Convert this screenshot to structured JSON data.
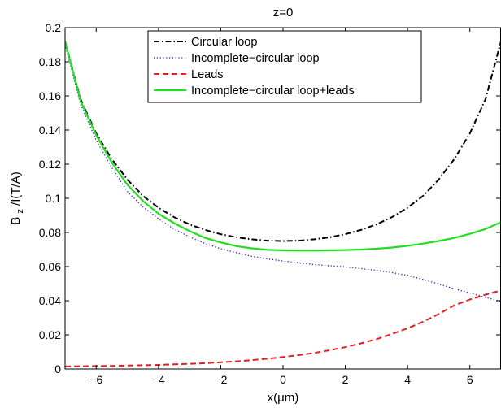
{
  "chart_data": {
    "type": "line",
    "title": "z=0",
    "xlabel": "x(μm)",
    "ylabel": "B_z/I(T/A)",
    "ylabel_main": "B",
    "ylabel_sub": "z",
    "ylabel_rest": "/I(T/A)",
    "xlim": [
      -7,
      7
    ],
    "ylim": [
      0,
      0.2
    ],
    "x_ticks": [
      -6,
      -4,
      -2,
      0,
      2,
      4,
      6
    ],
    "x_tick_labels": [
      "−6",
      "−4",
      "−2",
      "0",
      "2",
      "4",
      "6"
    ],
    "y_ticks": [
      0,
      0.02,
      0.04,
      0.06,
      0.08,
      0.1,
      0.12,
      0.14,
      0.16,
      0.18,
      0.2
    ],
    "y_tick_labels": [
      "0",
      "0.02",
      "0.04",
      "0.06",
      "0.08",
      "0.1",
      "0.12",
      "0.14",
      "0.16",
      "0.18",
      "0.2"
    ],
    "grid": false,
    "legend_position": "top-right",
    "series": [
      {
        "name": "Circular loop",
        "color": "#000000",
        "style": "dashdot",
        "x": [
          -7,
          -6.5,
          -6,
          -5.5,
          -5,
          -4.5,
          -4,
          -3.5,
          -3,
          -2.5,
          -2,
          -1.5,
          -1,
          -0.5,
          0,
          0.5,
          1,
          1.5,
          2,
          2.5,
          3,
          3.5,
          4,
          4.5,
          5,
          5.5,
          6,
          6.5,
          7
        ],
        "y": [
          0.192,
          0.158,
          0.138,
          0.123,
          0.111,
          0.1015,
          0.0945,
          0.089,
          0.0847,
          0.0815,
          0.079,
          0.0772,
          0.076,
          0.0752,
          0.075,
          0.0752,
          0.076,
          0.0772,
          0.079,
          0.0815,
          0.0847,
          0.089,
          0.0945,
          0.1015,
          0.111,
          0.123,
          0.138,
          0.158,
          0.192
        ]
      },
      {
        "name": "Incomplete−circular loop",
        "color": "#1a1acc",
        "style": "dotted",
        "x": [
          -7,
          -6.5,
          -6,
          -5.5,
          -5,
          -4.5,
          -4,
          -3.5,
          -3,
          -2.5,
          -2,
          -1.5,
          -1,
          -0.5,
          0,
          0.5,
          1,
          1.5,
          2,
          2.5,
          3,
          3.5,
          4,
          4.5,
          5,
          5.5,
          6,
          6.5,
          7
        ],
        "y": [
          0.19,
          0.155,
          0.134,
          0.118,
          0.104,
          0.095,
          0.088,
          0.082,
          0.0775,
          0.0735,
          0.0705,
          0.0682,
          0.066,
          0.0645,
          0.0633,
          0.0622,
          0.0612,
          0.0605,
          0.0598,
          0.0588,
          0.0578,
          0.0565,
          0.0548,
          0.0525,
          0.0498,
          0.047,
          0.0445,
          0.042,
          0.0395
        ]
      },
      {
        "name": "Leads",
        "color": "#e02020",
        "style": "dashed",
        "x": [
          -7,
          -6.5,
          -6,
          -5.5,
          -5,
          -4.5,
          -4,
          -3.5,
          -3,
          -2.5,
          -2,
          -1.5,
          -1,
          -0.5,
          0,
          0.5,
          1,
          1.5,
          2,
          2.5,
          3,
          3.5,
          4,
          4.5,
          5,
          5.5,
          6,
          6.5,
          7
        ],
        "y": [
          0.0015,
          0.0016,
          0.0017,
          0.0018,
          0.002,
          0.0022,
          0.0024,
          0.0027,
          0.003,
          0.0034,
          0.0039,
          0.0045,
          0.0052,
          0.006,
          0.007,
          0.0081,
          0.0094,
          0.011,
          0.0128,
          0.015,
          0.0175,
          0.0205,
          0.0238,
          0.0277,
          0.0322,
          0.0373,
          0.0407,
          0.0435,
          0.046
        ]
      },
      {
        "name": "Incomplete−circular loop+leads",
        "color": "#22dd22",
        "style": "solid",
        "x": [
          -7,
          -6.5,
          -6,
          -5.5,
          -5,
          -4.5,
          -4,
          -3.5,
          -3,
          -2.5,
          -2,
          -1.5,
          -1,
          -0.5,
          0,
          0.5,
          1,
          1.5,
          2,
          2.5,
          3,
          3.5,
          4,
          4.5,
          5,
          5.5,
          6,
          6.5,
          7
        ],
        "y": [
          0.192,
          0.157,
          0.137,
          0.121,
          0.108,
          0.0985,
          0.091,
          0.0855,
          0.0808,
          0.0768,
          0.0742,
          0.072,
          0.0707,
          0.0698,
          0.0695,
          0.0694,
          0.0694,
          0.0695,
          0.0697,
          0.07,
          0.0705,
          0.0712,
          0.0722,
          0.0735,
          0.075,
          0.0768,
          0.0792,
          0.082,
          0.086
        ]
      }
    ]
  }
}
